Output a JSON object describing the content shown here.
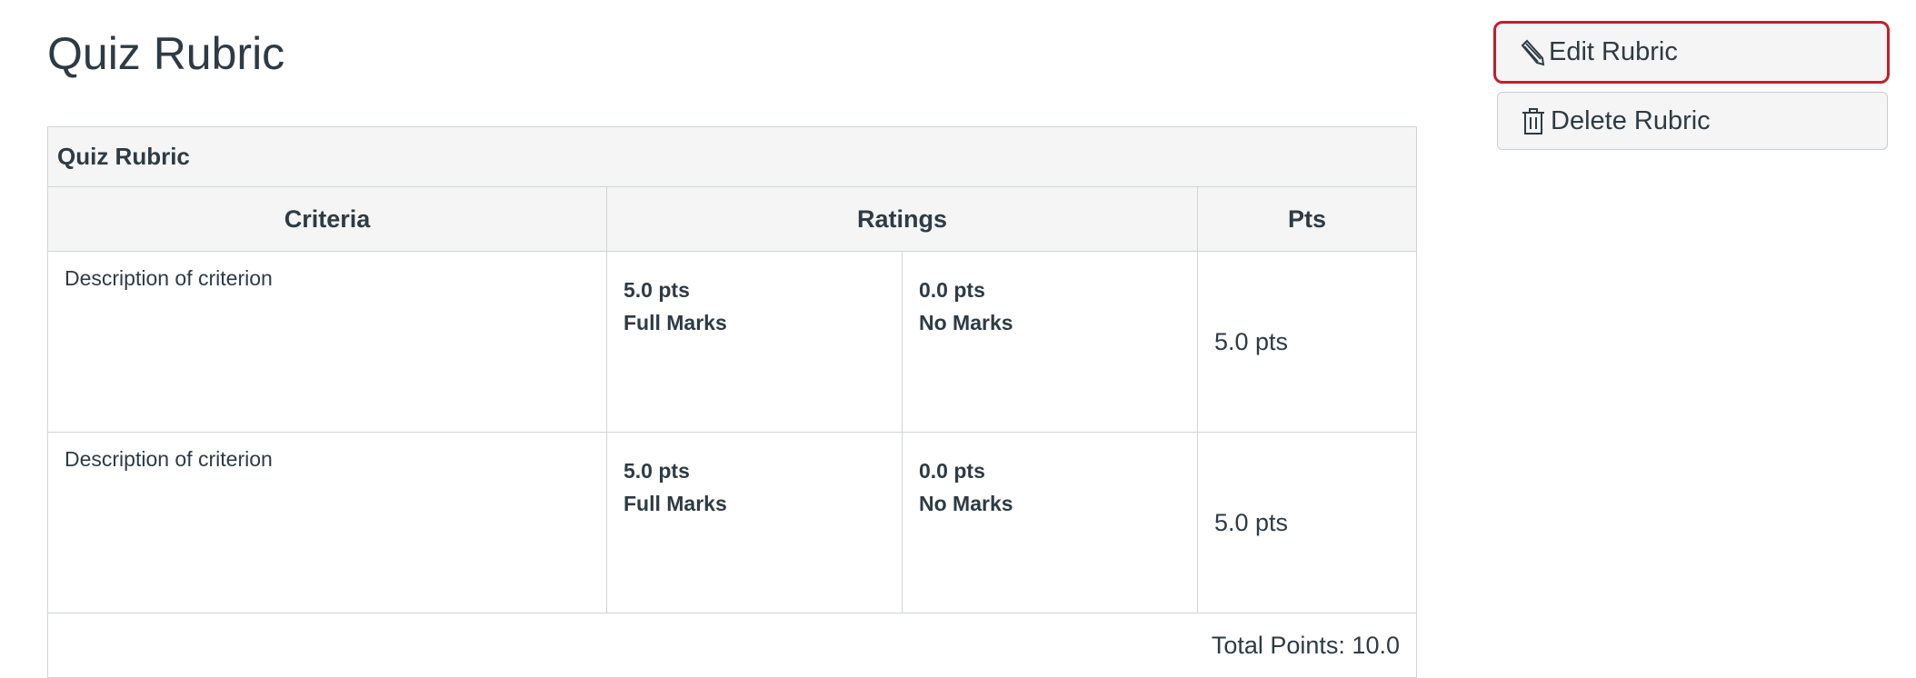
{
  "page": {
    "title": "Quiz Rubric"
  },
  "actions": {
    "edit_label": "Edit Rubric",
    "edit_icon": "pencil-icon",
    "delete_label": "Delete Rubric",
    "delete_icon": "trash-icon",
    "focus_color": "#c41e2c"
  },
  "rubric": {
    "caption": "Quiz Rubric",
    "headers": {
      "criteria": "Criteria",
      "ratings": "Ratings",
      "pts": "Pts"
    },
    "rows": [
      {
        "description": "Description of criterion",
        "ratings": [
          {
            "points": "5.0 pts",
            "label": "Full Marks"
          },
          {
            "points": "0.0 pts",
            "label": "No Marks"
          }
        ],
        "pts": "5.0 pts"
      },
      {
        "description": "Description of criterion",
        "ratings": [
          {
            "points": "5.0 pts",
            "label": "Full Marks"
          },
          {
            "points": "0.0 pts",
            "label": "No Marks"
          }
        ],
        "pts": "5.0 pts"
      }
    ],
    "total": "Total Points: 10.0"
  }
}
